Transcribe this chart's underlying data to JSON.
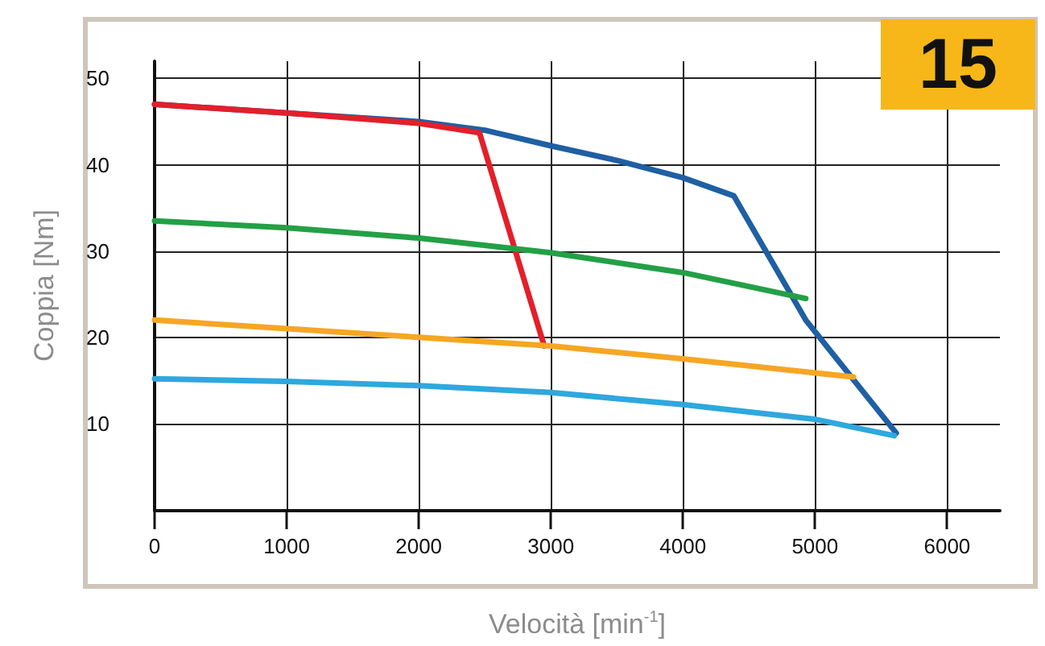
{
  "chart_data": {
    "type": "line",
    "xlabel": "Velocità [min$^{-1}$]",
    "ylabel": "Coppia [Nm]",
    "annotations": [
      "15"
    ],
    "xlim": [
      0,
      6400
    ],
    "ylim": [
      0,
      52
    ],
    "xticks": [
      0,
      1000,
      2000,
      3000,
      4000,
      5000,
      6000
    ],
    "yticks": [
      10,
      20,
      30,
      40,
      50
    ],
    "grid": true,
    "marker": "none",
    "line_style": "solid",
    "series": [
      {
        "color": "#1f5fa3",
        "x": [
          0,
          1000,
          2000,
          2500,
          3000,
          3500,
          4000,
          4385,
          4930,
          5615
        ],
        "values": [
          47,
          46,
          45,
          44,
          42.2,
          40.5,
          38.5,
          36.4,
          22,
          8.9
        ]
      },
      {
        "color": "#e31f2a",
        "x": [
          0,
          1000,
          2000,
          2460,
          2950
        ],
        "values": [
          47,
          46,
          44.8,
          43.7,
          19
        ]
      },
      {
        "color": "#23a046",
        "x": [
          0,
          1000,
          2000,
          3000,
          4000,
          4930
        ],
        "values": [
          33.5,
          32.7,
          31.5,
          29.8,
          27.5,
          24.5
        ]
      },
      {
        "color": "#f6a623",
        "x": [
          0,
          1000,
          2000,
          3000,
          4000,
          5290
        ],
        "values": [
          22,
          21,
          20,
          19,
          17.5,
          15.4
        ]
      },
      {
        "color": "#2ea8de",
        "x": [
          0,
          1000,
          2000,
          3000,
          4000,
          5000,
          5600
        ],
        "values": [
          15.2,
          14.9,
          14.4,
          13.6,
          12.2,
          10.5,
          8.6
        ]
      }
    ]
  }
}
